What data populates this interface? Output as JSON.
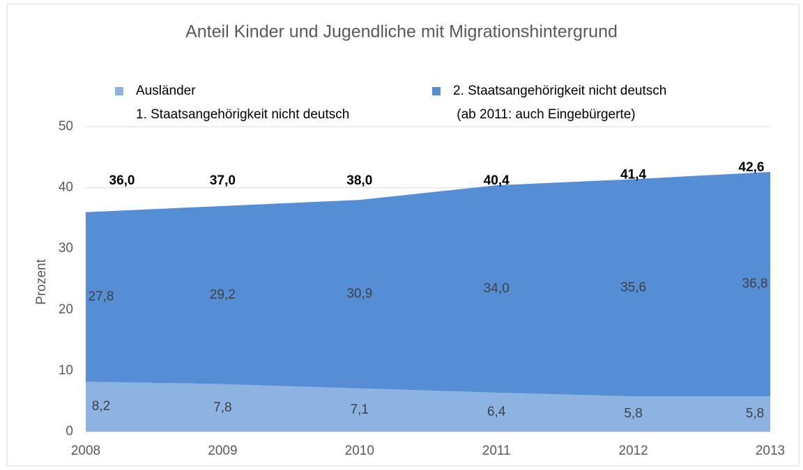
{
  "chart_data": {
    "type": "stacked_area",
    "title": "Anteil Kinder und Jugendliche  mit Migrationshintergrund",
    "y_label": "Prozent",
    "categories": [
      "2008",
      "2009",
      "2010",
      "2011",
      "2012",
      "2013"
    ],
    "series": [
      {
        "name": [
          "Ausländer",
          "1. Staatsangehörigkeit nicht deutsch"
        ],
        "color": "#8db3e2",
        "values": [
          8.2,
          7.8,
          7.1,
          6.4,
          5.8,
          5.8
        ],
        "value_labels": [
          "8,2",
          "7,8",
          "7,1",
          "6,4",
          "5,8",
          "5,8"
        ]
      },
      {
        "name": [
          "2. Staatsangehörigkeit nicht deutsch",
          " (ab 2011: auch Eingebürgerte)"
        ],
        "color": "#558ed5",
        "values": [
          27.8,
          29.2,
          30.9,
          34.0,
          35.6,
          36.8
        ],
        "value_labels": [
          "27,8",
          "29,2",
          "30,9",
          "34,0",
          "35,6",
          "36,8"
        ]
      }
    ],
    "totals": {
      "values": [
        36.0,
        37.0,
        38.0,
        40.4,
        41.4,
        42.6
      ],
      "value_labels": [
        "36,0",
        "37,0",
        "38,0",
        "40,4",
        "41,4",
        "42,6"
      ]
    },
    "ylim": [
      0,
      50
    ],
    "yticks": [
      0,
      10,
      20,
      30,
      40,
      50
    ],
    "grid": true
  }
}
